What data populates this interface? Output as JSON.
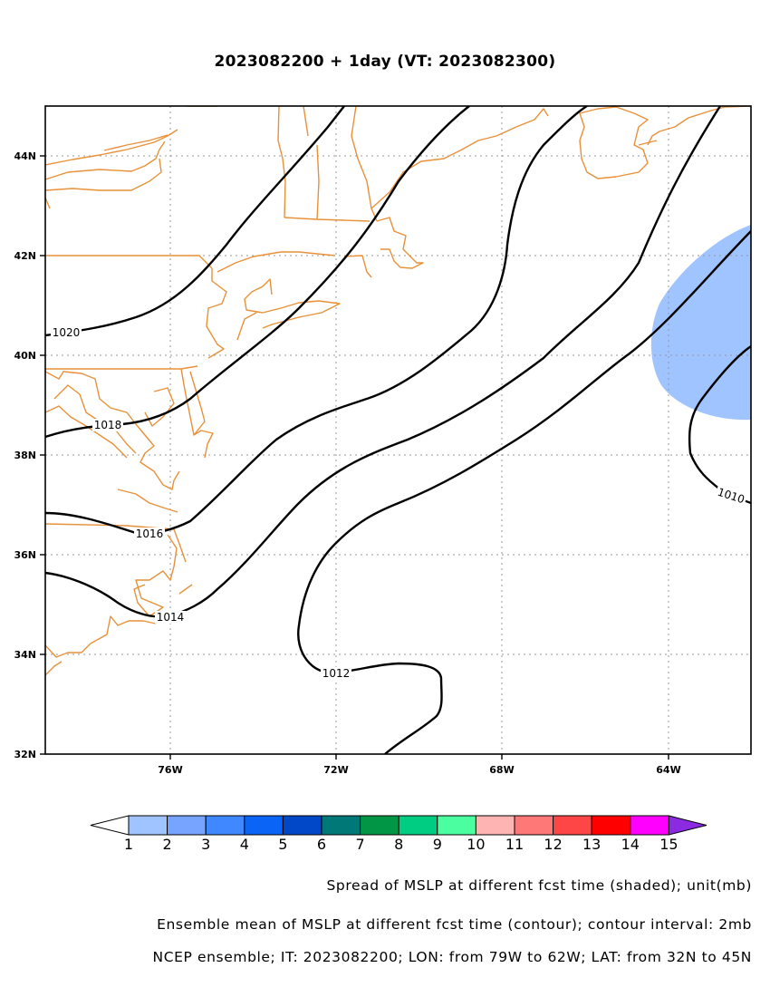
{
  "title": "2023082200 + 1day (VT: 2023082300)",
  "map": {
    "lon_labels": [
      "76W",
      "72W",
      "68W",
      "64W"
    ],
    "lat_labels": [
      "44N",
      "42N",
      "40N",
      "38N",
      "36N",
      "34N",
      "32N"
    ],
    "contour_labels": [
      "1020",
      "1018",
      "1016",
      "1014",
      "1012",
      "1010"
    ],
    "coastline_color": "#e8913a",
    "contour_color": "#000000",
    "shade_color": "#a0c4ff"
  },
  "colorbar": {
    "labels": [
      "1",
      "2",
      "3",
      "4",
      "5",
      "6",
      "7",
      "8",
      "9",
      "10",
      "11",
      "12",
      "13",
      "14",
      "15"
    ],
    "colors": [
      "#ffffff",
      "#a0c4ff",
      "#76a4ff",
      "#4088ff",
      "#0a64f5",
      "#0048c8",
      "#007878",
      "#009646",
      "#00cd82",
      "#4bffa0",
      "#ffb4b4",
      "#ff7878",
      "#ff4646",
      "#ff0000",
      "#ff00ff",
      "#8a2be2"
    ]
  },
  "footer": {
    "line1": "Spread of MSLP at different fcst time (shaded); unit(mb)",
    "line2": "Ensemble mean of MSLP at different fcst time (contour); contour interval: 2mb",
    "line3": "NCEP ensemble; IT: 2023082200; LON: from 79W to 62W; LAT: from 32N to 45N"
  }
}
